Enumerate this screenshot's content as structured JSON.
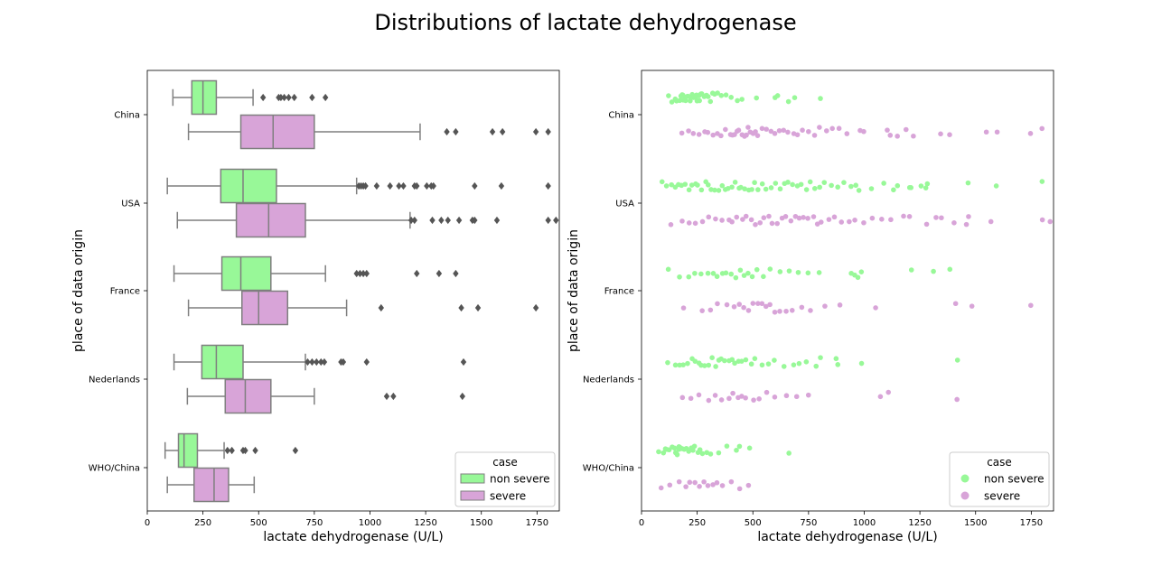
{
  "figure": {
    "title": "Distributions of lactate dehydrogenase"
  },
  "colors": {
    "non_severe": "#98f898",
    "severe": "#d8a4d8",
    "box_edge": "#7f7f7f",
    "axis": "#000000"
  },
  "chart_data": [
    {
      "type": "box",
      "id": "left",
      "xlabel": "lactate dehydrogenase (U/L)",
      "ylabel": "place of data origin",
      "xlim": [
        0,
        1850
      ],
      "xticks": [
        0,
        250,
        500,
        750,
        1000,
        1250,
        1500,
        1750
      ],
      "categories": [
        "China",
        "USA",
        "France",
        "Nederlands",
        "WHO/China"
      ],
      "legend": {
        "title": "case",
        "position": "lower right",
        "entries": [
          "non severe",
          "severe"
        ]
      },
      "groups": [
        {
          "category": "China",
          "non_severe": {
            "whislo": 115,
            "q1": 200,
            "median": 250,
            "q3": 310,
            "whishi": 475,
            "fliers": [
              520,
              590,
              600,
              615,
              635,
              660,
              740,
              800
            ]
          },
          "severe": {
            "whislo": 185,
            "q1": 420,
            "median": 565,
            "q3": 750,
            "whishi": 1225,
            "fliers": [
              1345,
              1385,
              1550,
              1595,
              1745,
              1800
            ]
          }
        },
        {
          "category": "USA",
          "non_severe": {
            "whislo": 90,
            "q1": 330,
            "median": 430,
            "q3": 580,
            "whishi": 940,
            "fliers": [
              950,
              960,
              970,
              980,
              1030,
              1090,
              1130,
              1150,
              1200,
              1210,
              1255,
              1275,
              1285,
              1470,
              1590,
              1800
            ]
          },
          "severe": {
            "whislo": 135,
            "q1": 400,
            "median": 545,
            "q3": 710,
            "whishi": 1180,
            "fliers": [
              1185,
              1200,
              1280,
              1320,
              1350,
              1400,
              1460,
              1470,
              1570,
              1800,
              1835
            ]
          }
        },
        {
          "category": "France",
          "non_severe": {
            "whislo": 120,
            "q1": 335,
            "median": 420,
            "q3": 555,
            "whishi": 800,
            "fliers": [
              940,
              955,
              970,
              985,
              1210,
              1310,
              1385
            ]
          },
          "severe": {
            "whislo": 185,
            "q1": 425,
            "median": 500,
            "q3": 630,
            "whishi": 895,
            "fliers": [
              1050,
              1410,
              1485,
              1745
            ]
          }
        },
        {
          "category": "Nederlands",
          "non_severe": {
            "whislo": 120,
            "q1": 245,
            "median": 310,
            "q3": 430,
            "whishi": 710,
            "fliers": [
              720,
              740,
              760,
              780,
              795,
              870,
              880,
              985,
              1420
            ]
          },
          "severe": {
            "whislo": 180,
            "q1": 350,
            "median": 440,
            "q3": 555,
            "whishi": 750,
            "fliers": [
              1075,
              1105,
              1415
            ]
          }
        },
        {
          "category": "WHO/China",
          "non_severe": {
            "whislo": 80,
            "q1": 140,
            "median": 165,
            "q3": 225,
            "whishi": 345,
            "fliers": [
              360,
              380,
              430,
              440,
              485,
              665
            ]
          },
          "severe": {
            "whislo": 90,
            "q1": 210,
            "median": 300,
            "q3": 365,
            "whishi": 480,
            "fliers": []
          }
        }
      ]
    },
    {
      "type": "scatter",
      "id": "right",
      "subtype": "stripplot",
      "xlabel": "lactate dehydrogenase (U/L)",
      "ylabel": "place of data origin",
      "xlim": [
        0,
        1850
      ],
      "xticks": [
        0,
        250,
        500,
        750,
        1000,
        1250,
        1500,
        1750
      ],
      "categories": [
        "China",
        "USA",
        "France",
        "Nederlands",
        "WHO/China"
      ],
      "legend": {
        "title": "case",
        "position": "lower right",
        "entries": [
          "non severe",
          "severe"
        ]
      },
      "groups": [
        {
          "category": "China",
          "non_severe": [
            120,
            135,
            150,
            160,
            170,
            175,
            180,
            185,
            190,
            195,
            200,
            205,
            210,
            215,
            220,
            225,
            230,
            235,
            240,
            245,
            250,
            255,
            260,
            265,
            270,
            280,
            290,
            300,
            310,
            320,
            330,
            340,
            360,
            380,
            400,
            430,
            450,
            520,
            600,
            610,
            660,
            690,
            800
          ],
          "severe": [
            185,
            210,
            230,
            260,
            280,
            300,
            320,
            340,
            360,
            380,
            400,
            410,
            420,
            430,
            440,
            450,
            460,
            470,
            480,
            490,
            500,
            510,
            520,
            540,
            560,
            580,
            600,
            620,
            640,
            660,
            680,
            700,
            720,
            750,
            780,
            800,
            830,
            860,
            890,
            920,
            980,
            1000,
            1100,
            1120,
            1150,
            1190,
            1220,
            1345,
            1385,
            1550,
            1595,
            1745,
            1800
          ]
        },
        {
          "category": "USA",
          "non_severe": [
            90,
            115,
            135,
            150,
            165,
            180,
            195,
            210,
            225,
            240,
            255,
            270,
            285,
            300,
            315,
            330,
            345,
            360,
            375,
            390,
            405,
            420,
            435,
            450,
            465,
            480,
            495,
            510,
            525,
            540,
            560,
            580,
            600,
            620,
            640,
            660,
            680,
            700,
            720,
            740,
            760,
            780,
            800,
            820,
            850,
            880,
            910,
            940,
            960,
            980,
            1030,
            1090,
            1130,
            1150,
            1200,
            1210,
            1255,
            1275,
            1285,
            1470,
            1590,
            1800
          ],
          "severe": [
            135,
            180,
            210,
            240,
            270,
            300,
            330,
            360,
            390,
            410,
            430,
            450,
            470,
            490,
            510,
            530,
            550,
            570,
            590,
            610,
            630,
            650,
            670,
            690,
            710,
            730,
            750,
            770,
            790,
            810,
            840,
            870,
            900,
            930,
            960,
            1000,
            1040,
            1080,
            1120,
            1180,
            1200,
            1280,
            1320,
            1350,
            1400,
            1460,
            1470,
            1570,
            1800,
            1835
          ]
        },
        {
          "category": "France",
          "non_severe": [
            120,
            170,
            210,
            240,
            270,
            300,
            320,
            340,
            360,
            380,
            400,
            420,
            440,
            460,
            480,
            500,
            520,
            550,
            580,
            620,
            660,
            700,
            750,
            800,
            940,
            955,
            970,
            985,
            1210,
            1310,
            1385
          ],
          "severe": [
            185,
            270,
            310,
            340,
            380,
            420,
            440,
            460,
            480,
            500,
            520,
            540,
            560,
            580,
            600,
            620,
            650,
            680,
            720,
            760,
            820,
            890,
            1050,
            1410,
            1485,
            1745
          ]
        },
        {
          "category": "Nederlands",
          "non_severe": [
            120,
            150,
            170,
            190,
            210,
            225,
            240,
            255,
            270,
            285,
            300,
            315,
            330,
            345,
            360,
            375,
            390,
            405,
            420,
            435,
            450,
            470,
            490,
            510,
            540,
            570,
            600,
            640,
            680,
            710,
            740,
            780,
            800,
            870,
            880,
            985,
            1420
          ],
          "severe": [
            180,
            220,
            260,
            300,
            330,
            360,
            390,
            410,
            430,
            450,
            470,
            500,
            530,
            560,
            600,
            650,
            700,
            750,
            1075,
            1105,
            1415
          ]
        },
        {
          "category": "WHO/China",
          "non_severe": [
            80,
            95,
            105,
            115,
            125,
            135,
            145,
            150,
            155,
            160,
            165,
            170,
            175,
            180,
            190,
            200,
            210,
            220,
            230,
            240,
            250,
            260,
            270,
            290,
            310,
            345,
            380,
            430,
            440,
            485,
            665
          ],
          "severe": [
            90,
            130,
            170,
            200,
            220,
            240,
            260,
            280,
            300,
            320,
            340,
            365,
            400,
            440,
            480
          ]
        }
      ]
    }
  ]
}
